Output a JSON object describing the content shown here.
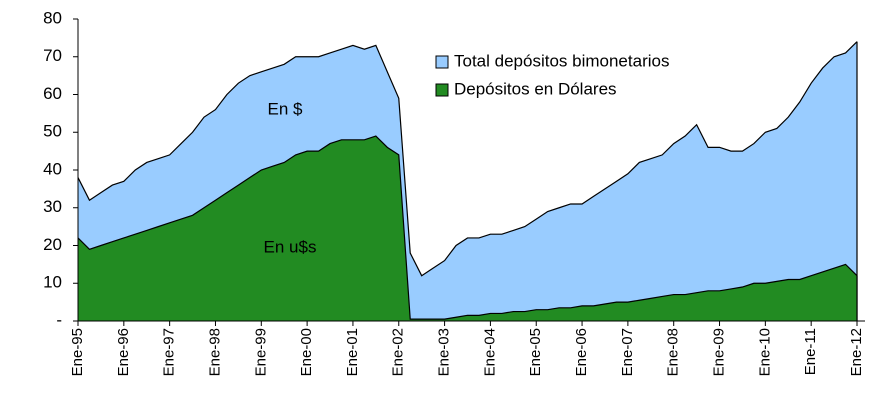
{
  "chart_data": {
    "type": "area",
    "categories": [
      "Ene-95",
      null,
      null,
      null,
      "Ene-96",
      null,
      null,
      null,
      "Ene-97",
      null,
      null,
      null,
      "Ene-98",
      null,
      null,
      null,
      "Ene-99",
      null,
      null,
      null,
      "Ene-00",
      null,
      null,
      null,
      "Ene-01",
      null,
      null,
      null,
      "Ene-02",
      null,
      null,
      null,
      "Ene-03",
      null,
      null,
      null,
      "Ene-04",
      null,
      null,
      null,
      "Ene-05",
      null,
      null,
      null,
      "Ene-06",
      null,
      null,
      null,
      "Ene-07",
      null,
      null,
      null,
      "Ene-08",
      null,
      null,
      null,
      "Ene-09",
      null,
      null,
      null,
      "Ene-10",
      null,
      null,
      null,
      "Ene-11",
      null,
      null,
      null,
      "Ene-12"
    ],
    "series": [
      {
        "name": "Total depósitos bimonetarios",
        "color": "#99ccff",
        "values": [
          38,
          32,
          34,
          36,
          37,
          40,
          42,
          43,
          44,
          47,
          50,
          54,
          56,
          60,
          63,
          65,
          66,
          67,
          68,
          70,
          70,
          70,
          71,
          72,
          73,
          72,
          73,
          66,
          59,
          18,
          12,
          14,
          16,
          20,
          22,
          22,
          23,
          23,
          24,
          25,
          27,
          29,
          30,
          31,
          31,
          33,
          35,
          37,
          39,
          42,
          43,
          44,
          47,
          49,
          52,
          46,
          46,
          45,
          45,
          47,
          50,
          51,
          54,
          58,
          63,
          67,
          70,
          71,
          74
        ]
      },
      {
        "name": "Depósitos en Dólares",
        "color": "#228b22",
        "values": [
          22,
          19,
          20,
          21,
          22,
          23,
          24,
          25,
          26,
          27,
          28,
          30,
          32,
          34,
          36,
          38,
          40,
          41,
          42,
          44,
          45,
          45,
          47,
          48,
          48,
          48,
          49,
          46,
          44,
          0.5,
          0.5,
          0.5,
          0.5,
          1,
          1.5,
          1.5,
          2,
          2,
          2.5,
          2.5,
          3,
          3,
          3.5,
          3.5,
          4,
          4,
          4.5,
          5,
          5,
          5.5,
          6,
          6.5,
          7,
          7,
          7.5,
          8,
          8,
          8.5,
          9,
          10,
          10,
          10.5,
          11,
          11,
          12,
          13,
          14,
          15,
          12
        ]
      }
    ],
    "annotations": [
      "En $",
      "En u$s"
    ],
    "ylim": [
      0,
      80
    ],
    "yticks": [
      {
        "value": 0,
        "label": "-"
      },
      10,
      20,
      30,
      40,
      50,
      60,
      70,
      80
    ],
    "legend": "upper right"
  }
}
